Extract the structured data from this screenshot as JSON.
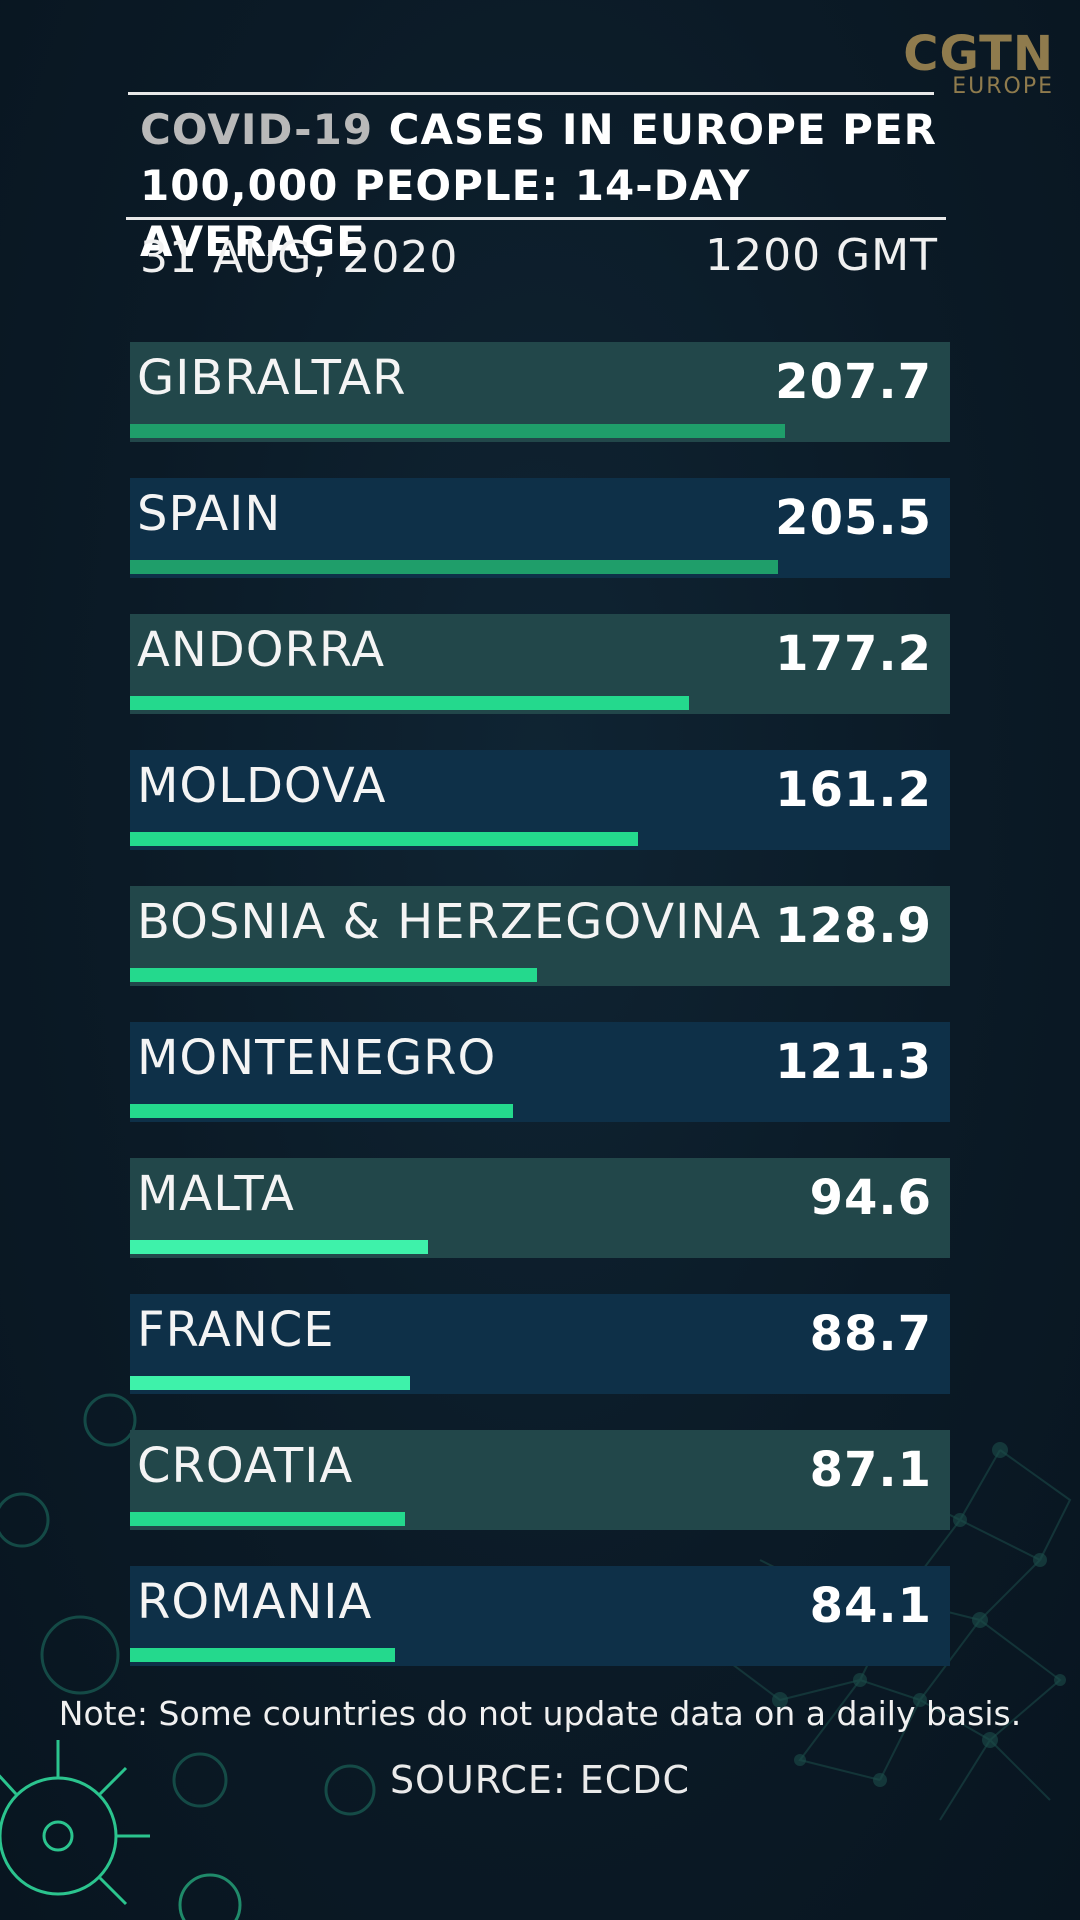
{
  "brand": {
    "name": "CGTN",
    "region": "EUROPE"
  },
  "title": {
    "highlight": "COVID-19",
    "rest_line1": " CASES IN EUROPE PER",
    "line2": "100,000 PEOPLE: 14-DAY AVERAGE"
  },
  "date": "31 AUG, 2020",
  "time": "1200 GMT",
  "chart_data": {
    "type": "bar",
    "orientation": "horizontal",
    "categories": [
      "GIBRALTAR",
      "SPAIN",
      "ANDORRA",
      "MOLDOVA",
      "BOSNIA & HERZEGOVINA",
      "MONTENEGRO",
      "MALTA",
      "FRANCE",
      "CROATIA",
      "ROMANIA"
    ],
    "values": [
      207.7,
      205.5,
      177.2,
      161.2,
      128.9,
      121.3,
      94.6,
      88.7,
      87.1,
      84.1
    ],
    "value_labels": [
      "207.7",
      "205.5",
      "177.2",
      "161.2",
      "128.9",
      "121.3",
      "94.6",
      "88.7",
      "87.1",
      "84.1"
    ],
    "xlim": [
      0,
      260
    ],
    "title": "COVID-19 CASES IN EUROPE PER 100,000 PEOPLE: 14-DAY AVERAGE",
    "grid": false
  },
  "colors": {
    "row_teal": "#22474a",
    "row_navy": "#0e3048",
    "bar_dark": "#1f9e6a",
    "bar_mid": "#24d98d",
    "bar_light": "#3ef2aa"
  },
  "note": "Note: Some countries do not update data on a daily basis.",
  "source": "SOURCE: ECDC"
}
